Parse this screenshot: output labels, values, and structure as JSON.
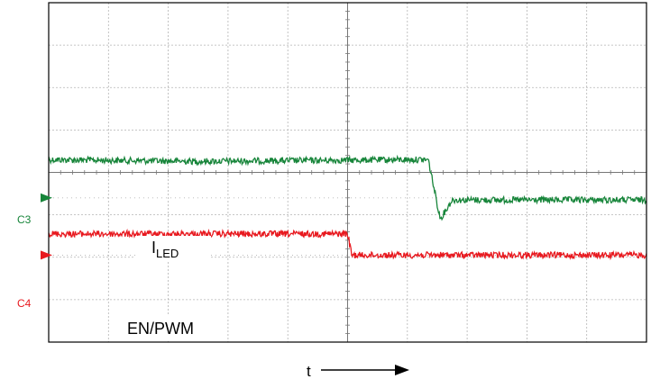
{
  "colors": {
    "ch3": "#17853a",
    "ch4": "#e8191f",
    "grid": "#b3b3b3",
    "frame": "#000000",
    "arrow": "#000000"
  },
  "labels": {
    "ch3_marker": "C3",
    "ch4_marker": "C4",
    "iled_main": "I",
    "iled_sub": "LED",
    "en_pwm": "EN/PWM",
    "time_axis": "t"
  },
  "chart_data": {
    "type": "line",
    "grid": true,
    "x_divisions": 10,
    "y_divisions": 8,
    "xlim": [
      0,
      10
    ],
    "ylim": [
      -4,
      4
    ],
    "series": [
      {
        "name": "ILED",
        "channel": "C3",
        "color": "#17853a",
        "ground_level": -0.6,
        "points": [
          [
            0,
            0.3
          ],
          [
            2.5,
            0.26
          ],
          [
            6.0,
            0.3
          ],
          [
            6.35,
            0.3
          ],
          [
            6.55,
            -1.1
          ],
          [
            6.75,
            -0.65
          ],
          [
            10,
            -0.65
          ]
        ]
      },
      {
        "name": "EN/PWM",
        "channel": "C4",
        "color": "#e8191f",
        "ground_level": -1.95,
        "points": [
          [
            0,
            -1.45
          ],
          [
            5.0,
            -1.45
          ],
          [
            5.07,
            -1.95
          ],
          [
            10,
            -1.95
          ]
        ]
      }
    ]
  }
}
